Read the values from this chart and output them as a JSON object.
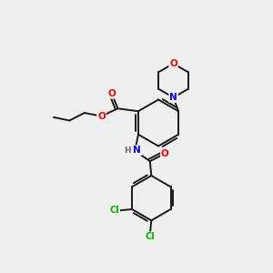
{
  "bg_color": "#efefef",
  "bond_color": "#1a1a1a",
  "atom_colors": {
    "O": "#ff0000",
    "N": "#0000ff",
    "Cl": "#00bb00",
    "C": "#1a1a1a",
    "H": "#666666"
  },
  "figsize": [
    3.0,
    3.0
  ],
  "dpi": 100
}
